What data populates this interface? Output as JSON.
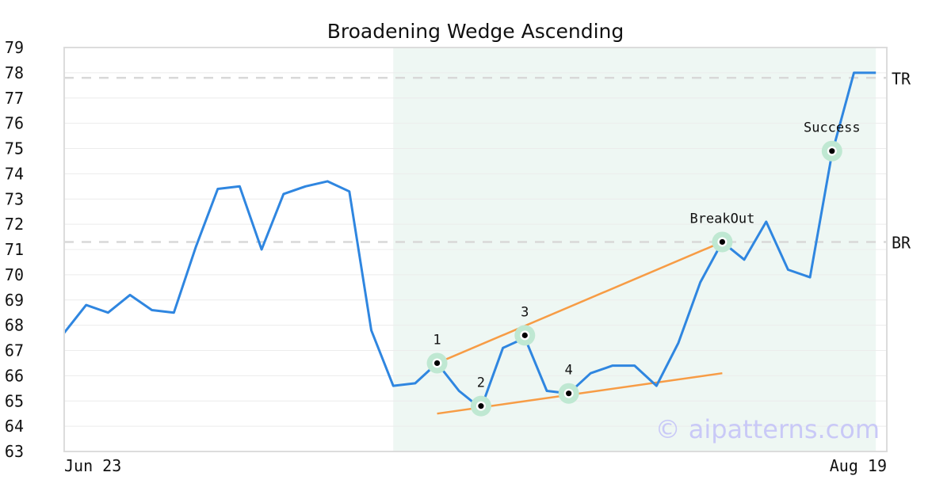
{
  "chart_data": {
    "type": "line",
    "title": "Broadening Wedge Ascending",
    "watermark": "© aipatterns.com",
    "ylim": [
      63,
      79
    ],
    "y_ticks": [
      63,
      64,
      65,
      66,
      67,
      68,
      69,
      70,
      71,
      72,
      73,
      74,
      75,
      76,
      77,
      78,
      79
    ],
    "x_range": [
      0,
      37.5
    ],
    "x_tick_labels": [
      {
        "x": 0,
        "label": "Jun 23"
      },
      {
        "x": 37.5,
        "label": "Aug 19"
      }
    ],
    "grid": true,
    "colors": {
      "price": "#2f86e0",
      "trendline": "#f79c45",
      "highlight": "#eef7f3",
      "marker_ring": "#bfe8d2",
      "reference": "#d8d8d8"
    },
    "pattern_region": [
      15,
      37
    ],
    "series": [
      {
        "x": [
          0,
          1,
          2,
          3,
          4,
          5,
          6,
          7,
          8,
          9,
          10,
          11,
          12,
          13,
          14,
          15,
          16,
          17,
          18,
          19,
          20,
          21,
          22,
          23,
          24,
          25,
          26,
          27,
          28,
          29,
          30,
          31,
          32,
          33,
          34,
          35,
          36,
          37
        ],
        "values": [
          67.7,
          68.8,
          68.5,
          69.2,
          68.6,
          68.5,
          71.1,
          73.4,
          73.5,
          71.0,
          73.2,
          73.5,
          73.7,
          73.3,
          67.8,
          65.6,
          65.7,
          66.5,
          65.4,
          64.7,
          67.1,
          67.5,
          65.4,
          65.3,
          66.1,
          66.4,
          66.4,
          65.6,
          67.3,
          69.7,
          71.3,
          70.6,
          72.1,
          70.2,
          69.9,
          74.8,
          78.0,
          78.0
        ]
      }
    ],
    "reference_lines": [
      {
        "label": "TR",
        "y": 77.8
      },
      {
        "label": "BR",
        "y": 71.3
      }
    ],
    "trendlines": [
      {
        "x": [
          17,
          30
        ],
        "y": [
          66.5,
          71.3
        ]
      },
      {
        "x": [
          17,
          30
        ],
        "y": [
          64.5,
          66.1
        ]
      }
    ],
    "points": [
      {
        "label": "1",
        "x": 17,
        "y": 66.5,
        "label_pos": "above"
      },
      {
        "label": "2",
        "x": 19,
        "y": 64.8,
        "label_pos": "above"
      },
      {
        "label": "3",
        "x": 21,
        "y": 67.6,
        "label_pos": "above"
      },
      {
        "label": "4",
        "x": 23,
        "y": 65.3,
        "label_pos": "above"
      },
      {
        "label": "BreakOut",
        "x": 30,
        "y": 71.3,
        "label_pos": "above"
      },
      {
        "label": "Success",
        "x": 35,
        "y": 74.9,
        "label_pos": "above"
      }
    ]
  }
}
